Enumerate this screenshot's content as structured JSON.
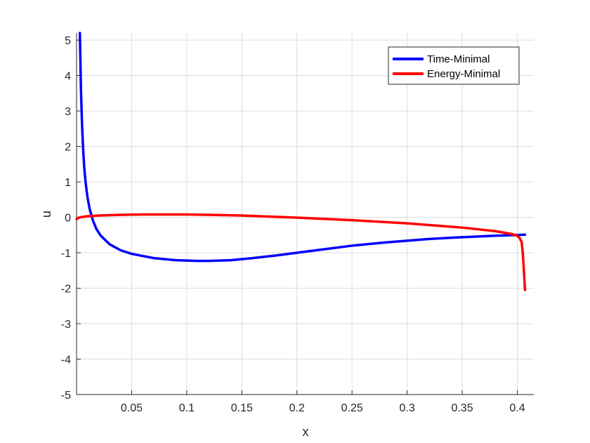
{
  "chart_data": {
    "type": "line",
    "xlabel": "x",
    "ylabel": "u",
    "xlim": [
      0.0,
      0.415
    ],
    "ylim": [
      -5,
      5.2
    ],
    "xticks": [
      0.05,
      0.1,
      0.15,
      0.2,
      0.25,
      0.3,
      0.35,
      0.4
    ],
    "xtick_labels": [
      "0.05",
      "0.1",
      "0.15",
      "0.2",
      "0.25",
      "0.3",
      "0.35",
      "0.4"
    ],
    "yticks": [
      -5,
      -4,
      -3,
      -2,
      -1,
      0,
      1,
      2,
      3,
      4,
      5
    ],
    "ytick_labels": [
      "-5",
      "-4",
      "-3",
      "-2",
      "-1",
      "0",
      "1",
      "2",
      "3",
      "4",
      "5"
    ],
    "grid": true,
    "legend_position": "top-right",
    "series": [
      {
        "name": "Time-Minimal",
        "color": "#0000ff",
        "x": [
          0.003,
          0.0035,
          0.004,
          0.005,
          0.006,
          0.007,
          0.008,
          0.009,
          0.01,
          0.012,
          0.015,
          0.018,
          0.022,
          0.03,
          0.04,
          0.05,
          0.07,
          0.09,
          0.11,
          0.12,
          0.14,
          0.16,
          0.18,
          0.2,
          0.22,
          0.25,
          0.28,
          0.3,
          0.32,
          0.35,
          0.38,
          0.4,
          0.407
        ],
        "y": [
          5.2,
          4.4,
          3.6,
          2.6,
          1.9,
          1.4,
          1.05,
          0.78,
          0.55,
          0.22,
          -0.1,
          -0.33,
          -0.52,
          -0.76,
          -0.93,
          -1.03,
          -1.15,
          -1.21,
          -1.23,
          -1.23,
          -1.21,
          -1.15,
          -1.08,
          -1.0,
          -0.92,
          -0.8,
          -0.71,
          -0.66,
          -0.61,
          -0.56,
          -0.52,
          -0.5,
          -0.49
        ]
      },
      {
        "name": "Energy-Minimal",
        "color": "#ff0000",
        "x": [
          0.0,
          0.002,
          0.005,
          0.01,
          0.02,
          0.04,
          0.06,
          0.08,
          0.1,
          0.12,
          0.15,
          0.2,
          0.25,
          0.3,
          0.35,
          0.38,
          0.395,
          0.4,
          0.402,
          0.404,
          0.405,
          0.406,
          0.407
        ],
        "y": [
          -0.05,
          -0.01,
          0.01,
          0.03,
          0.05,
          0.07,
          0.08,
          0.08,
          0.08,
          0.07,
          0.05,
          -0.01,
          -0.08,
          -0.17,
          -0.29,
          -0.39,
          -0.47,
          -0.52,
          -0.58,
          -0.7,
          -1.0,
          -1.5,
          -2.05
        ]
      }
    ]
  }
}
